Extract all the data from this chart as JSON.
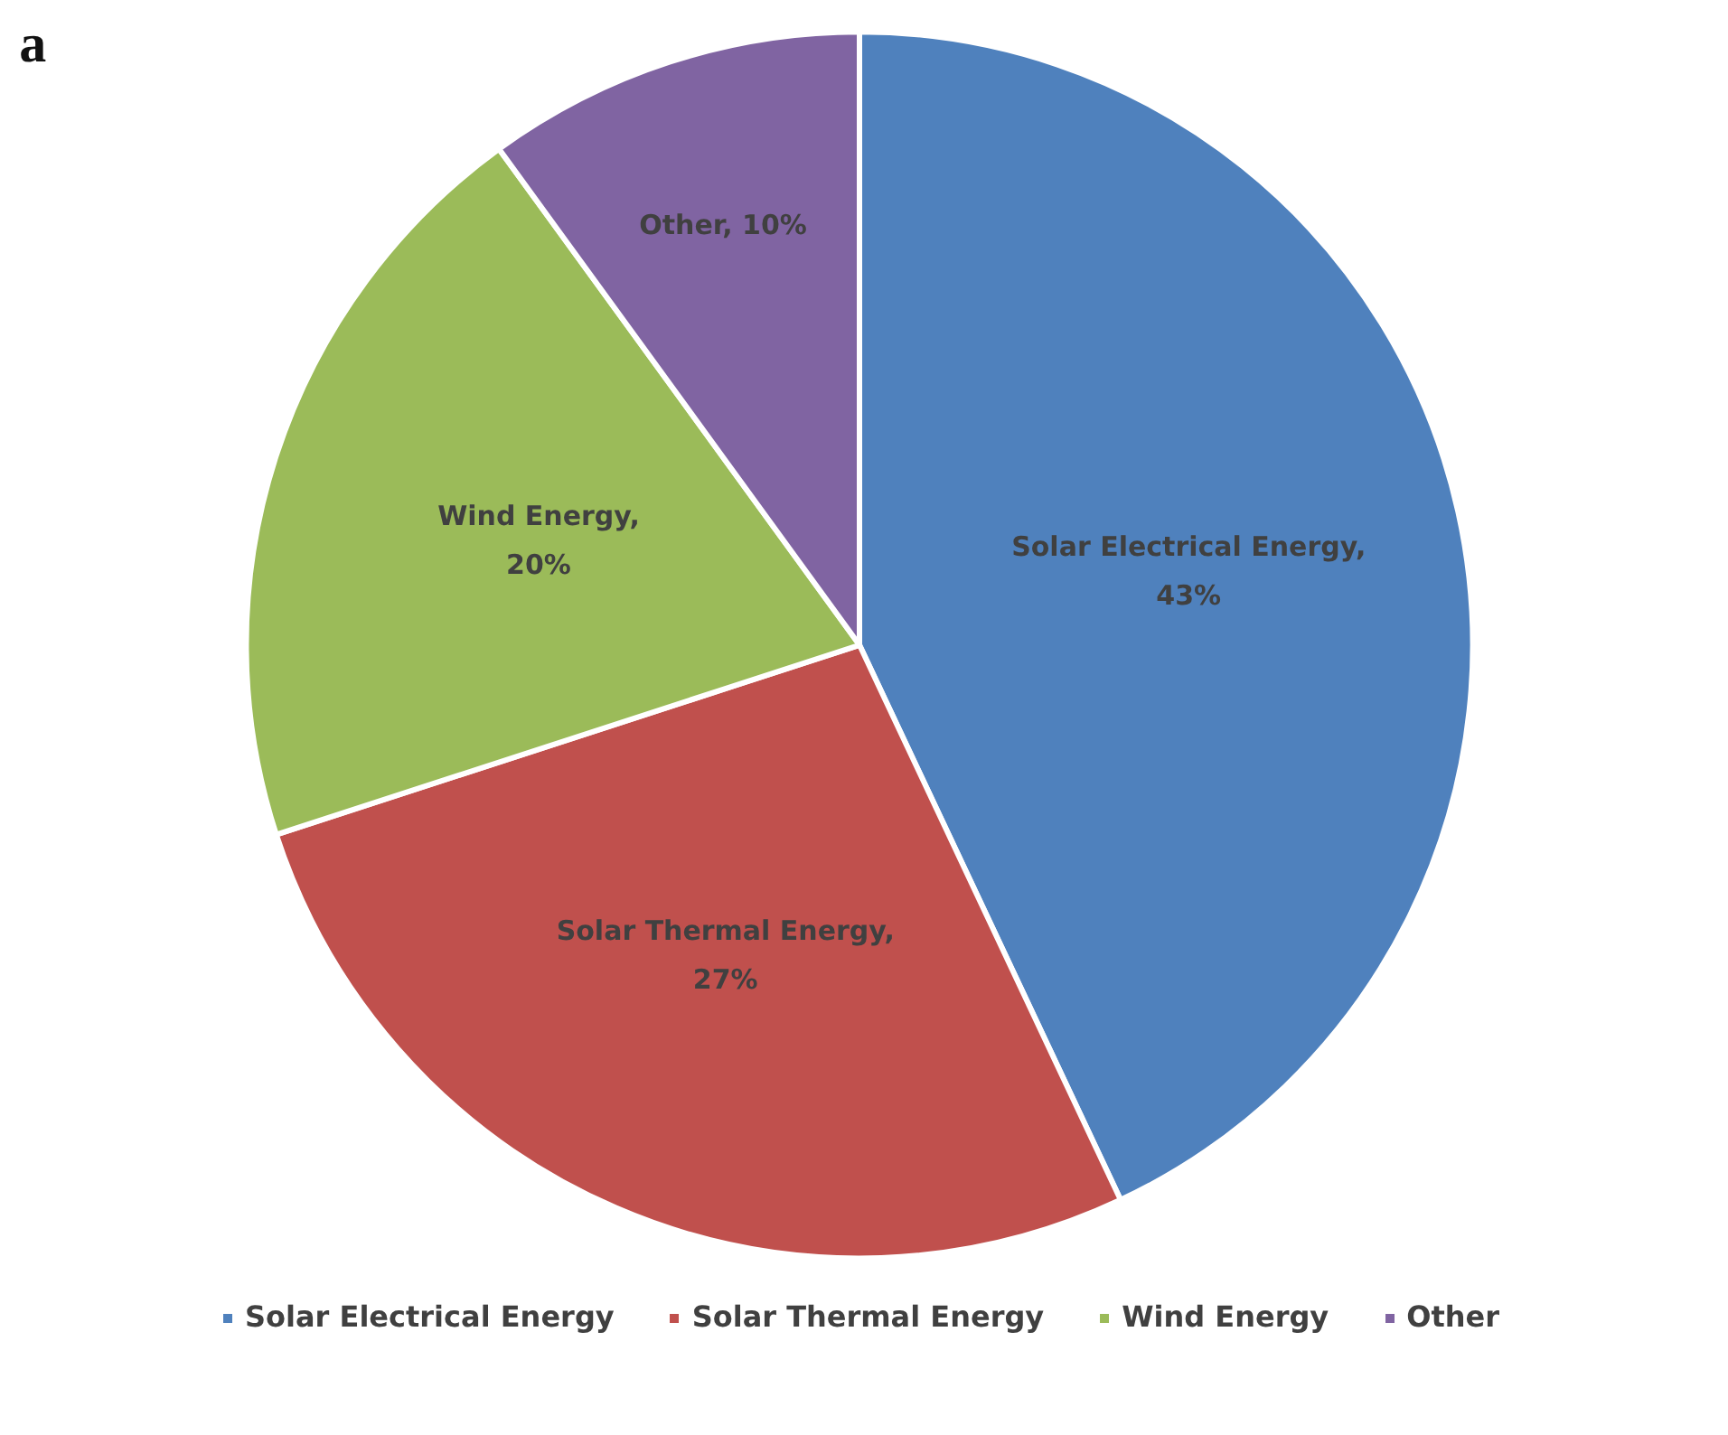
{
  "chart_data": {
    "type": "pie",
    "title": "a",
    "categories": [
      "Solar Electrical Energy",
      "Solar Thermal Energy",
      "Wind Energy",
      "Other"
    ],
    "values": [
      43,
      27,
      20,
      10
    ],
    "colors": [
      "#4f81bd",
      "#c0504d",
      "#9bbb59",
      "#8064a2"
    ],
    "value_labels": [
      "Solar Electrical Energy, 43%",
      "Solar Thermal Energy, 27%",
      "Wind Energy, 20%",
      "Other, 10%"
    ],
    "legend": "bottom"
  }
}
